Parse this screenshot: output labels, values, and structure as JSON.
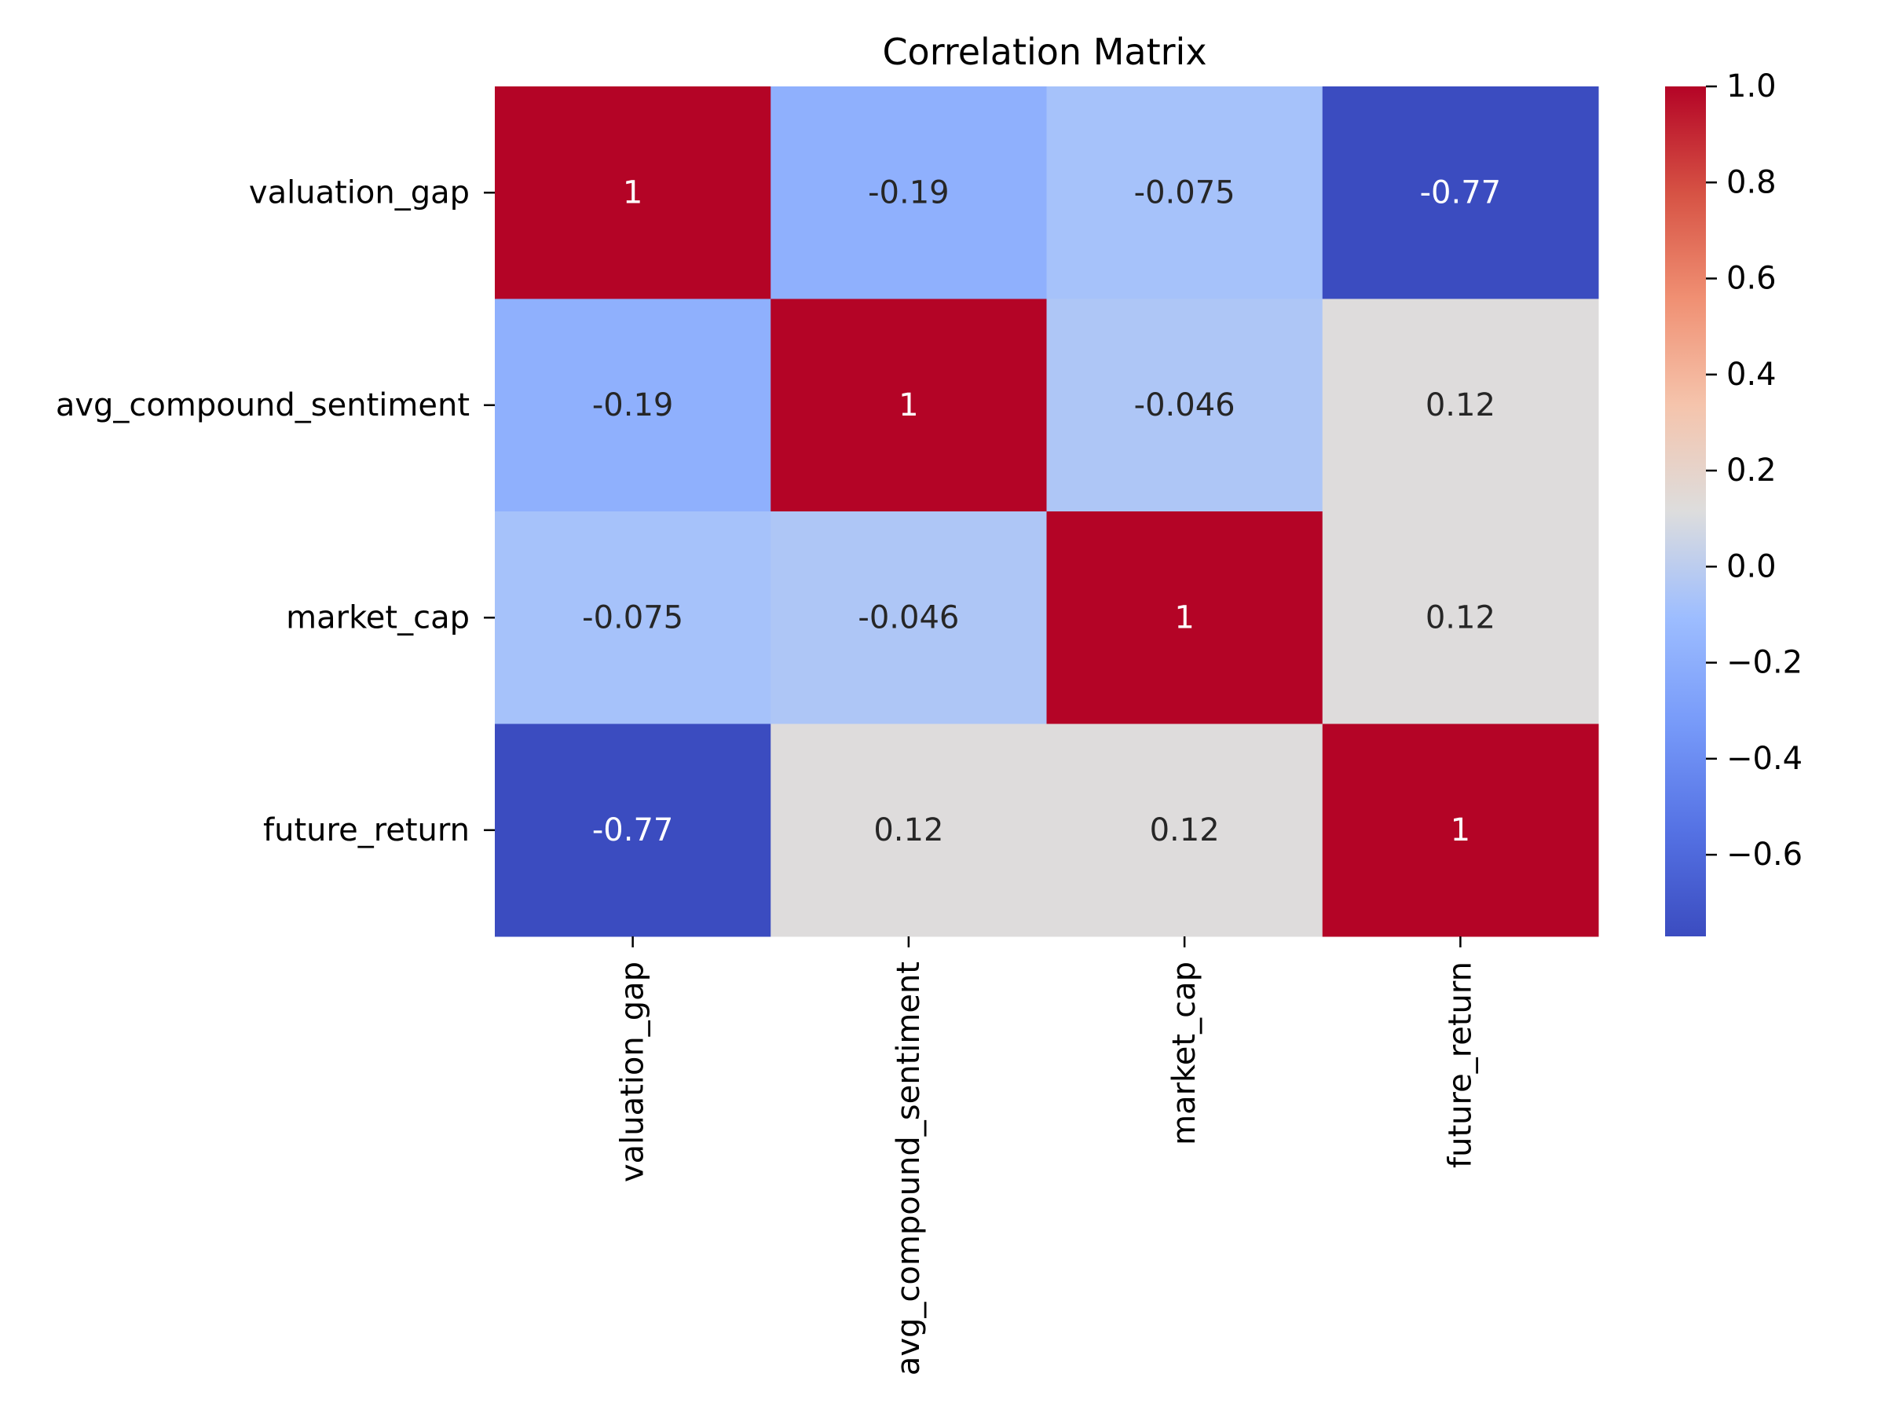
{
  "chart_data": {
    "type": "heatmap",
    "title": "Correlation Matrix",
    "variables": [
      "valuation_gap",
      "avg_compound_sentiment",
      "market_cap",
      "future_return"
    ],
    "matrix": [
      [
        1,
        -0.19,
        -0.075,
        -0.77
      ],
      [
        -0.19,
        1,
        -0.046,
        0.12
      ],
      [
        -0.075,
        -0.046,
        1,
        0.12
      ],
      [
        -0.77,
        0.12,
        0.12,
        1
      ]
    ],
    "annotations": [
      [
        "1",
        "-0.19",
        "-0.075",
        "-0.77"
      ],
      [
        "-0.19",
        "1",
        "-0.046",
        "0.12"
      ],
      [
        "-0.075",
        "-0.046",
        "1",
        "0.12"
      ],
      [
        "-0.77",
        "0.12",
        "0.12",
        "1"
      ]
    ],
    "colormap": "coolwarm",
    "colorbar": {
      "range": [
        -0.77,
        1.0
      ],
      "ticks": [
        1.0,
        0.8,
        0.6,
        0.4,
        0.2,
        0.0,
        -0.2,
        -0.4,
        -0.6
      ],
      "tick_labels": [
        "1.0",
        "0.8",
        "0.6",
        "0.4",
        "0.2",
        "0.0",
        "−0.2",
        "−0.4",
        "−0.6"
      ],
      "placement": "right"
    },
    "colors": {
      "cold": "#3b4cc0",
      "neutral": "#dddddd",
      "hot": "#b40426"
    }
  }
}
